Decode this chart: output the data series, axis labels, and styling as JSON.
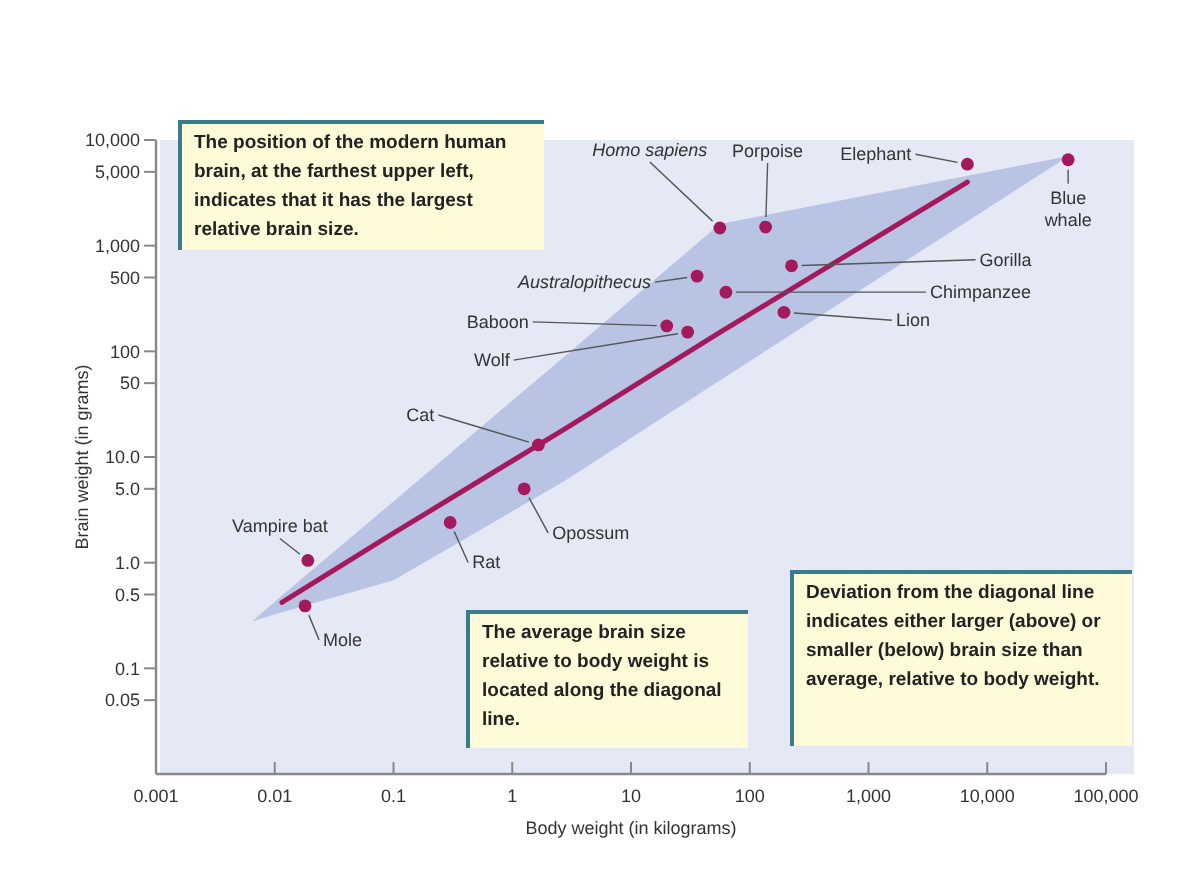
{
  "chart_data": {
    "type": "scatter",
    "log": "xy",
    "xlabel": "Body weight (in kilograms)",
    "ylabel": "Brain weight (in grams)",
    "xlim": [
      0.001,
      100000
    ],
    "ylim": [
      0.01,
      10000
    ],
    "xticks": [
      0.001,
      0.01,
      0.1,
      1,
      10,
      100,
      {
        "value": 1000,
        "label": "1,000"
      },
      {
        "value": 10000,
        "label": "10,000"
      },
      {
        "value": 100000,
        "label": "100,000"
      }
    ],
    "yticks": [
      0.05,
      0.1,
      0.5,
      {
        "value": 1,
        "label": "1.0"
      },
      {
        "value": 5,
        "label": "5.0"
      },
      {
        "value": 10,
        "label": "10.0"
      },
      50,
      100,
      500,
      {
        "value": 1000,
        "label": "1,000"
      },
      {
        "value": 5000,
        "label": "5,000"
      },
      {
        "value": 10000,
        "label": "10,000"
      }
    ],
    "marker": "circle",
    "grid": false,
    "annotations": [
      "The position of the modern human brain, at the farthest upper left, indicates that it has the largest relative brain size.",
      "The average brain size relative to body weight is located along the diagonal line.",
      "Deviation from the diagonal line indicates either larger (above) or smaller (below) brain size  than average, relative to body weight."
    ],
    "series": [
      {
        "type": "line",
        "marker": "none",
        "color": "#a3195b",
        "x": [
          0.0065,
          0.0115,
          0.1,
          2.8,
          56,
          6800,
          48000
        ],
        "values": [
          null,
          0.42,
          1.9,
          18.6,
          151,
          4000,
          null
        ],
        "lower": [
          0.28,
          0.34,
          0.68,
          6,
          53,
          1700,
          7000
        ],
        "upper": [
          0.28,
          0.49,
          3.8,
          91,
          1600,
          4600,
          7000
        ]
      },
      {
        "name": "Homo sapiens",
        "color": "#a3195b",
        "x": [
          56
        ],
        "values": [
          1470
        ]
      },
      {
        "name": "Porpoise",
        "color": "#a3195b",
        "x": [
          136
        ],
        "values": [
          1500
        ]
      },
      {
        "name": "Elephant",
        "color": "#a3195b",
        "x": [
          6800
        ],
        "values": [
          5900
        ]
      },
      {
        "name": "Blue whale",
        "color": "#a3195b",
        "x": [
          48000
        ],
        "values": [
          6500
        ]
      },
      {
        "name": "Gorilla",
        "color": "#a3195b",
        "x": [
          225
        ],
        "values": [
          645
        ]
      },
      {
        "name": "Chimpanzee",
        "color": "#a3195b",
        "x": [
          63
        ],
        "values": [
          363
        ]
      },
      {
        "name": "Lion",
        "color": "#a3195b",
        "x": [
          194
        ],
        "values": [
          234
        ]
      },
      {
        "name": "Australopithecus",
        "color": "#a3195b",
        "x": [
          36
        ],
        "values": [
          515
        ]
      },
      {
        "name": "Baboon",
        "color": "#a3195b",
        "x": [
          20
        ],
        "values": [
          174
        ]
      },
      {
        "name": "Wolf",
        "color": "#a3195b",
        "x": [
          30
        ],
        "values": [
          152
        ]
      },
      {
        "name": "Cat",
        "color": "#a3195b",
        "x": [
          1.66
        ],
        "values": [
          13
        ]
      },
      {
        "name": "Opossum",
        "color": "#a3195b",
        "x": [
          1.26
        ],
        "values": [
          5
        ]
      },
      {
        "name": "Rat",
        "color": "#a3195b",
        "x": [
          0.3
        ],
        "values": [
          2.4
        ]
      },
      {
        "name": "Vampire bat",
        "color": "#a3195b",
        "x": [
          0.019
        ],
        "values": [
          1.05
        ]
      },
      {
        "name": "Mole",
        "color": "#a3195b",
        "x": [
          0.018
        ],
        "values": [
          0.39
        ]
      }
    ]
  }
}
